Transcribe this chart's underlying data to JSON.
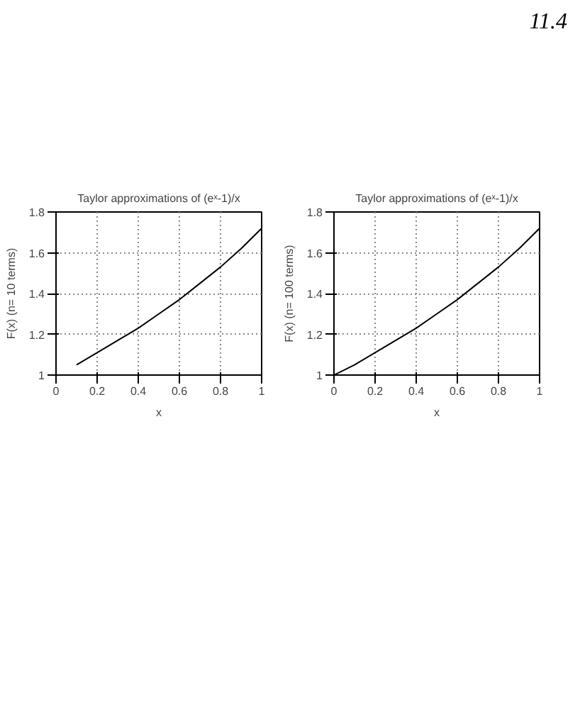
{
  "chart_data": [
    {
      "type": "line",
      "title": "Taylor approximations of (eˣ-1)/x",
      "xlabel": "x",
      "ylabel": "F(x) (n= 10 terms)",
      "x": [
        0.1,
        0.2,
        0.3,
        0.4,
        0.5,
        0.6,
        0.7,
        0.8,
        0.9,
        1.0
      ],
      "series": [
        {
          "color": "#000000",
          "values": [
            1.05,
            1.11,
            1.17,
            1.23,
            1.3,
            1.37,
            1.45,
            1.53,
            1.62,
            1.72
          ]
        }
      ],
      "xlim": [
        0,
        1
      ],
      "ylim": [
        1,
        1.8
      ],
      "xticks": [
        0,
        0.2,
        0.4,
        0.6,
        0.8,
        1
      ],
      "yticks": [
        1,
        1.2,
        1.4,
        1.6,
        1.8
      ],
      "grid": true,
      "line_style": "solid"
    },
    {
      "type": "line",
      "title": "Taylor approximations of (eˣ-1)/x",
      "xlabel": "x",
      "ylabel": "F(x) (n= 100 terms)",
      "x": [
        0.0,
        0.1,
        0.2,
        0.3,
        0.4,
        0.5,
        0.6,
        0.7,
        0.8,
        0.9,
        1.0
      ],
      "series": [
        {
          "color": "#000000",
          "values": [
            1.0,
            1.05,
            1.11,
            1.17,
            1.23,
            1.3,
            1.37,
            1.45,
            1.53,
            1.62,
            1.72
          ]
        }
      ],
      "xlim": [
        0,
        1
      ],
      "ylim": [
        1,
        1.8
      ],
      "xticks": [
        0,
        0.2,
        0.4,
        0.6,
        0.8,
        1
      ],
      "yticks": [
        1,
        1.2,
        1.4,
        1.6,
        1.8
      ],
      "grid": true,
      "line_style": "solid",
      "annotations": [
        "11.4"
      ]
    }
  ]
}
